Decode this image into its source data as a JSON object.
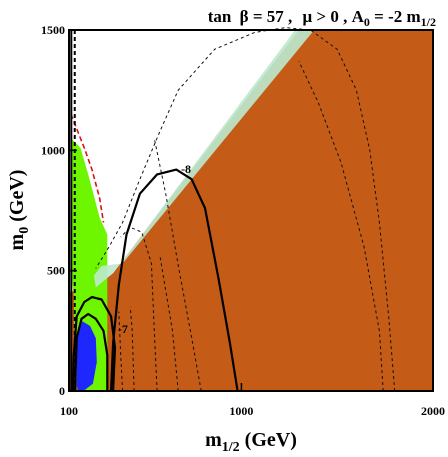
{
  "chart_data": {
    "type": "contour",
    "title_parts": {
      "tan": "tan",
      "beta_eq": "β = 57 ,",
      "mu": "μ > 0 , A",
      "a0_sub": "0",
      "eq": " = -2 m",
      "m_sub": "1/2"
    },
    "xlabel": {
      "main": "m",
      "sub": "1/2",
      "unit": " (GeV)"
    },
    "ylabel": {
      "main": "m",
      "sub": "0",
      "unit": " (GeV)"
    },
    "xlim": [
      100,
      2000
    ],
    "ylim": [
      0,
      1500
    ],
    "xticks": [
      100,
      1000,
      2000
    ],
    "yticks": [
      0,
      500,
      1000,
      1500
    ],
    "contour_labels": [
      {
        "text": "-8",
        "x": 685,
        "y": 905
      },
      {
        "text": "-7",
        "x": 355,
        "y": 240
      }
    ],
    "regions": {
      "stau_lsp_color": "#c45c17",
      "excluded_green_color": "#6ef500",
      "cosmology_band_color": "#bde9cf",
      "bsg_blue_color": "#1f27ff",
      "higgs_red_color": "#e01010"
    },
    "boundary": [
      [
        100,
        0
      ],
      [
        100,
        410
      ],
      [
        250,
        440
      ],
      [
        330,
        490
      ],
      [
        1300,
        1500
      ],
      [
        2000,
        1500
      ],
      [
        2000,
        0
      ]
    ],
    "green_region": [
      [
        110,
        500
      ],
      [
        110,
        1050
      ],
      [
        160,
        1010
      ],
      [
        200,
        900
      ],
      [
        260,
        720
      ],
      [
        300,
        650
      ],
      [
        300,
        0
      ],
      [
        150,
        0
      ],
      [
        130,
        100
      ],
      [
        125,
        400
      ]
    ],
    "cosmo_band": [
      [
        240,
        430
      ],
      [
        330,
        490
      ],
      [
        1280,
        1500
      ],
      [
        1380,
        1500
      ],
      [
        380,
        530
      ],
      [
        270,
        520
      ],
      [
        230,
        480
      ]
    ],
    "blue_region": [
      [
        140,
        20
      ],
      [
        140,
        230
      ],
      [
        170,
        290
      ],
      [
        210,
        270
      ],
      [
        240,
        220
      ],
      [
        245,
        120
      ],
      [
        225,
        30
      ],
      [
        175,
        0
      ],
      [
        150,
        0
      ]
    ],
    "contours_solid": [
      [
        [
          980,
          0
        ],
        [
          940,
          200
        ],
        [
          880,
          470
        ],
        [
          810,
          760
        ],
        [
          740,
          880
        ],
        [
          660,
          920
        ],
        [
          560,
          900
        ],
        [
          470,
          820
        ],
        [
          400,
          650
        ],
        [
          360,
          440
        ],
        [
          330,
          200
        ],
        [
          320,
          0
        ]
      ],
      [
        [
          330,
          0
        ],
        [
          340,
          180
        ],
        [
          320,
          310
        ],
        [
          270,
          380
        ],
        [
          220,
          390
        ],
        [
          180,
          370
        ],
        [
          140,
          310
        ],
        [
          125,
          150
        ],
        [
          120,
          0
        ]
      ],
      [
        [
          300,
          0
        ],
        [
          300,
          150
        ],
        [
          280,
          250
        ],
        [
          240,
          300
        ],
        [
          200,
          320
        ],
        [
          165,
          300
        ],
        [
          140,
          220
        ],
        [
          135,
          100
        ],
        [
          132,
          0
        ]
      ]
    ],
    "contours_dashed": [
      [
        [
          1800,
          0
        ],
        [
          1770,
          300
        ],
        [
          1720,
          700
        ],
        [
          1670,
          1000
        ],
        [
          1600,
          1250
        ],
        [
          1500,
          1420
        ],
        [
          1360,
          1500
        ],
        [
          1230,
          1510
        ],
        [
          1070,
          1490
        ],
        [
          860,
          1420
        ],
        [
          670,
          1250
        ],
        [
          570,
          1070
        ],
        [
          470,
          880
        ],
        [
          380,
          700
        ],
        [
          310,
          600
        ],
        [
          240,
          510
        ]
      ],
      [
        [
          1740,
          0
        ],
        [
          1720,
          250
        ],
        [
          1640,
          600
        ],
        [
          1520,
          950
        ],
        [
          1400,
          1200
        ],
        [
          1300,
          1370
        ]
      ],
      [
        [
          790,
          0
        ],
        [
          745,
          200
        ],
        [
          675,
          500
        ],
        [
          605,
          820
        ],
        [
          545,
          1050
        ]
      ],
      [
        [
          670,
          0
        ],
        [
          640,
          250
        ],
        [
          575,
          560
        ]
      ],
      [
        [
          560,
          0
        ],
        [
          545,
          250
        ],
        [
          530,
          530
        ],
        [
          480,
          660
        ],
        [
          420,
          680
        ],
        [
          370,
          640
        ]
      ],
      [
        [
          440,
          0
        ],
        [
          430,
          250
        ],
        [
          420,
          350
        ]
      ],
      [
        [
          380,
          0
        ],
        [
          370,
          150
        ],
        [
          360,
          330
        ]
      ]
    ],
    "verticals": [
      {
        "x": 112,
        "style": "solid"
      },
      {
        "x": 130,
        "style": "dashed"
      }
    ],
    "higgs_line": [
      [
        110,
        1150
      ],
      [
        180,
        1010
      ],
      [
        220,
        920
      ],
      [
        260,
        800
      ],
      [
        280,
        700
      ]
    ]
  }
}
